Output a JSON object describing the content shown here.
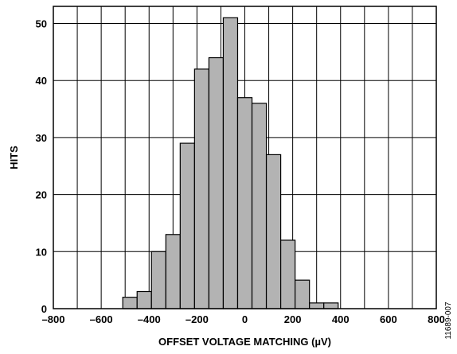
{
  "chart_data": {
    "type": "bar",
    "title": "",
    "xlabel": "OFFSET VOLTAGE MATCHING (µV)",
    "ylabel": "HITS",
    "xlim": [
      -800,
      800
    ],
    "ylim": [
      0,
      53
    ],
    "xticks": [
      -800,
      -600,
      -400,
      -200,
      0,
      200,
      400,
      600,
      800
    ],
    "xtick_labels": [
      "–800",
      "–600",
      "–400",
      "–200",
      "0",
      "200",
      "400",
      "600",
      "800"
    ],
    "yticks": [
      0,
      10,
      20,
      30,
      40,
      50
    ],
    "ytick_labels": [
      "0",
      "10",
      "20",
      "30",
      "40",
      "50"
    ],
    "grid": true,
    "bin_width": 60,
    "bin_centers": [
      -480,
      -420,
      -360,
      -300,
      -240,
      -180,
      -120,
      -60,
      0,
      60,
      120,
      180,
      240,
      300,
      360,
      420,
      480,
      540
    ],
    "values": [
      2,
      3,
      10,
      13,
      29,
      42,
      44,
      51,
      37,
      36,
      27,
      12,
      5,
      1,
      1,
      0,
      0,
      0
    ],
    "bar_color": "#b3b3b3",
    "edge_color": "#000000"
  },
  "figure_id": "11689-007"
}
